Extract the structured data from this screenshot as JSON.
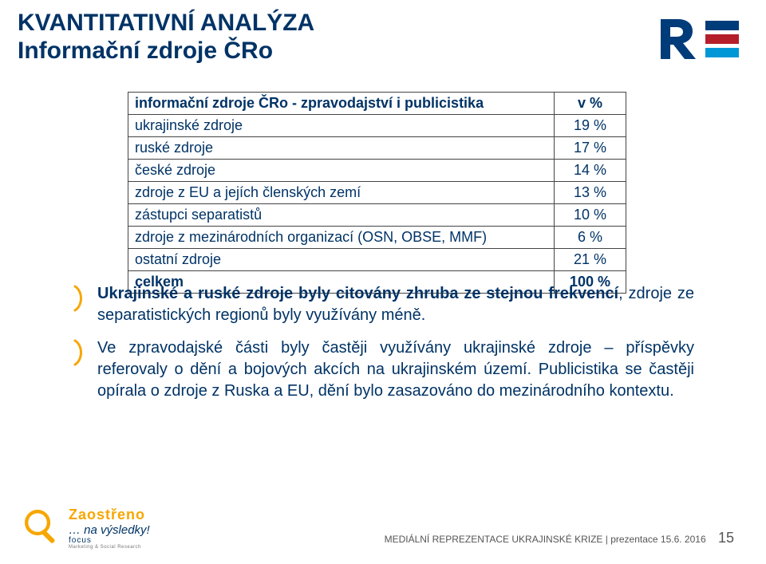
{
  "header": {
    "line1": "KVANTITATIVNÍ ANALÝZA",
    "line2": "Informační zdroje ČRo"
  },
  "table": {
    "header_label": "informační zdroje ČRo - zpravodajství i publicistika",
    "header_value": "v %",
    "rows": [
      {
        "label": "ukrajinské zdroje",
        "value": "19 %"
      },
      {
        "label": "ruské zdroje",
        "value": "17 %"
      },
      {
        "label": "české zdroje",
        "value": "14 %"
      },
      {
        "label": "zdroje z EU a jejích členských zemí",
        "value": "13 %"
      },
      {
        "label": "zástupci separatistů",
        "value": "10 %"
      },
      {
        "label": "zdroje z mezinárodních organizací (OSN, OBSE, MMF)",
        "value": "6 %"
      },
      {
        "label": "ostatní zdroje",
        "value": "21 %"
      }
    ],
    "total_label": "celkem",
    "total_value": "100 %",
    "border_color": "#444444",
    "text_color": "#003366",
    "font_size": 18
  },
  "bullets": {
    "items": [
      {
        "spans": [
          {
            "text": "Ukrajinské a ruské zdroje byly citovány zhruba ze stejnou frekvencí",
            "bold": true
          },
          {
            "text": ", zdroje ze separatistických regionů byly využívány méně.",
            "bold": false
          }
        ]
      },
      {
        "spans": [
          {
            "text": "Ve zpravodajské části byly častěji využívány ukrajinské zdroje – příspěvky referovaly o dění a bojových akcích na ukrajinském území. Publicistika se častěji opírala o zdroje z Ruska a EU, dění bylo zasazováno do mezinárodního kontextu.",
            "bold": false
          }
        ]
      }
    ],
    "arc_color": "#f7a600"
  },
  "footer": {
    "brand_top": "Zaostřeno",
    "brand_bottom": "… na výsledky!",
    "meta": "MEDIÁLNÍ REPREZENTACE UKRAJINSKÉ KRIZE | prezentace 15.6. 2016",
    "page": "15",
    "magnifier_color": "#f7a600"
  },
  "logo": {
    "bar_colors": [
      "#003b7a",
      "#b51f2a",
      "#0097d6"
    ],
    "r_color": "#003b7a"
  }
}
